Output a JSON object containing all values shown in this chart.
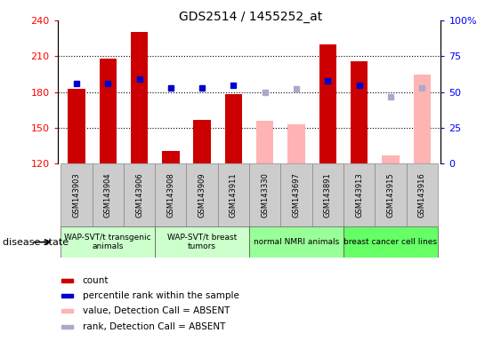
{
  "title": "GDS2514 / 1455252_at",
  "samples": [
    "GSM143903",
    "GSM143904",
    "GSM143906",
    "GSM143908",
    "GSM143909",
    "GSM143911",
    "GSM143330",
    "GSM143697",
    "GSM143891",
    "GSM143913",
    "GSM143915",
    "GSM143916"
  ],
  "bar_values": [
    183,
    208,
    230,
    131,
    157,
    178,
    null,
    null,
    220,
    206,
    null,
    null
  ],
  "bar_absent_values": [
    null,
    null,
    null,
    null,
    null,
    null,
    156,
    153,
    null,
    null,
    127,
    195
  ],
  "rank_values": [
    56,
    56,
    59,
    53,
    53,
    55,
    null,
    null,
    58,
    55,
    null,
    null
  ],
  "rank_absent_values": [
    null,
    null,
    null,
    null,
    null,
    null,
    50,
    52,
    null,
    null,
    47,
    53
  ],
  "ylim_left": [
    120,
    240
  ],
  "ylim_right": [
    0,
    100
  ],
  "yticks_left": [
    120,
    150,
    180,
    210,
    240
  ],
  "yticks_right": [
    0,
    25,
    50,
    75,
    100
  ],
  "bar_color": "#cc0000",
  "bar_absent_color": "#ffb3b3",
  "rank_color": "#0000cc",
  "rank_absent_color": "#aaaacc",
  "sample_bg_color": "#cccccc",
  "groups": [
    {
      "label": "WAP-SVT/t transgenic\nanimals",
      "start": 0,
      "end": 3,
      "color": "#ccffcc"
    },
    {
      "label": "WAP-SVT/t breast\ntumors",
      "start": 3,
      "end": 6,
      "color": "#ccffcc"
    },
    {
      "label": "normal NMRI animals",
      "start": 6,
      "end": 9,
      "color": "#99ff99"
    },
    {
      "label": "breast cancer cell lines",
      "start": 9,
      "end": 12,
      "color": "#66ff66"
    }
  ],
  "disease_state_label": "disease state",
  "legend_items": [
    {
      "color": "#cc0000",
      "label": "count"
    },
    {
      "color": "#0000cc",
      "label": "percentile rank within the sample"
    },
    {
      "color": "#ffb3b3",
      "label": "value, Detection Call = ABSENT"
    },
    {
      "color": "#aaaacc",
      "label": "rank, Detection Call = ABSENT"
    }
  ],
  "bar_width": 0.55,
  "rank_marker_size": 5
}
